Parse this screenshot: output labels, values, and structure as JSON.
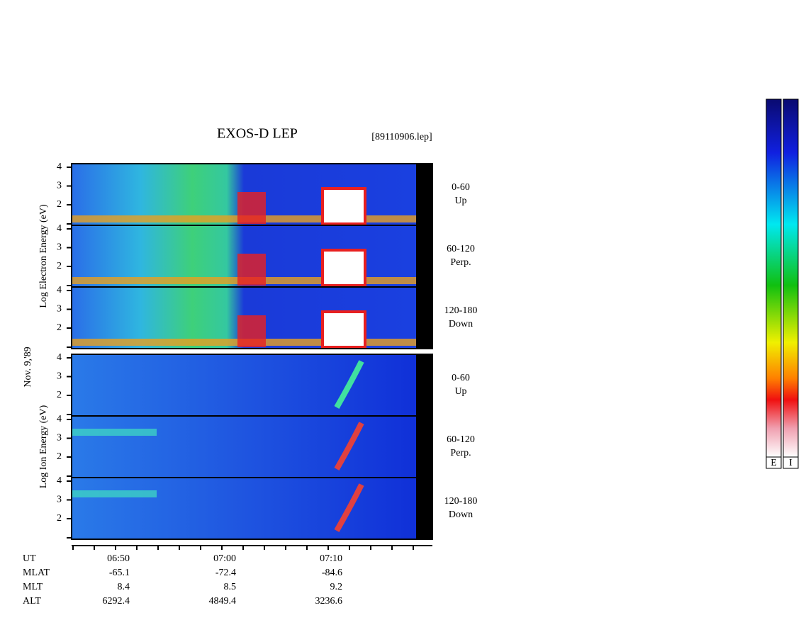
{
  "header": {
    "title": "EXOS-D LEP",
    "file": "[89110906.lep]",
    "date": "Nov. 9,'89"
  },
  "groups": [
    {
      "axis_label": "Log Electron Energy (eV)",
      "ticks": [
        "4",
        "3",
        "2"
      ],
      "panels": [
        {
          "range": "0-60",
          "dir": "Up"
        },
        {
          "range": "60-120",
          "dir": "Perp."
        },
        {
          "range": "120-180",
          "dir": "Down"
        }
      ]
    },
    {
      "axis_label": "Log Ion Energy (eV)",
      "ticks": [
        "4",
        "3",
        "2"
      ],
      "panels": [
        {
          "range": "0-60",
          "dir": "Up"
        },
        {
          "range": "60-120",
          "dir": "Perp."
        },
        {
          "range": "120-180",
          "dir": "Down"
        }
      ]
    }
  ],
  "ephemeris": [
    [
      "UT",
      "06:50",
      "07:00",
      "07:10"
    ],
    [
      "MLAT",
      "-65.1",
      "-72.4",
      "-84.6"
    ],
    [
      "MLT",
      "8.4",
      "8.5",
      "9.2"
    ],
    [
      "ALT",
      "6292.4",
      "4849.4",
      "3236.6"
    ]
  ],
  "colorbars": [
    "E",
    "I"
  ]
}
